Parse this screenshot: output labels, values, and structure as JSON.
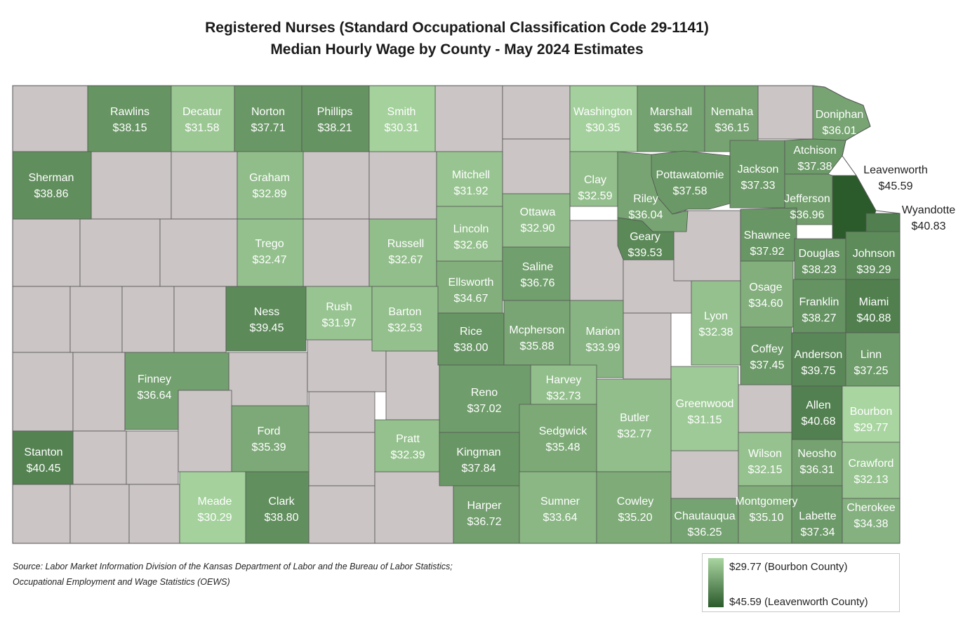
{
  "title_line1": "Registered Nurses (Standard Occupational Classification Code 29-1141)",
  "title_line2": "Median Hourly Wage by County - May 2024 Estimates",
  "source_line1": "Source: Labor Market Information Division of the Kansas Department of Labor and the Bureau of Labor Statistics;",
  "source_line2": "Occupational Employment and Wage Statistics (OEWS)",
  "legend": {
    "min_label": "$29.77 (Bourbon County)",
    "max_label": "$45.59 (Leavenworth County)",
    "min_value": 29.77,
    "max_value": 45.59,
    "min_color": "#a9d5a1",
    "max_color": "#2b5a2b"
  },
  "no_data_color": "#cbc5c5",
  "counties": [
    {
      "name": "Rawlins",
      "wage": "$38.15",
      "value": 38.15
    },
    {
      "name": "Decatur",
      "wage": "$31.58",
      "value": 31.58
    },
    {
      "name": "Norton",
      "wage": "$37.71",
      "value": 37.71
    },
    {
      "name": "Phillips",
      "wage": "$38.21",
      "value": 38.21
    },
    {
      "name": "Smith",
      "wage": "$30.31",
      "value": 30.31
    },
    {
      "name": "Washington",
      "wage": "$30.35",
      "value": 30.35
    },
    {
      "name": "Marshall",
      "wage": "$36.52",
      "value": 36.52
    },
    {
      "name": "Nemaha",
      "wage": "$36.15",
      "value": 36.15
    },
    {
      "name": "Doniphan",
      "wage": "$36.01",
      "value": 36.01
    },
    {
      "name": "Sherman",
      "wage": "$38.86",
      "value": 38.86
    },
    {
      "name": "Graham",
      "wage": "$32.89",
      "value": 32.89
    },
    {
      "name": "Mitchell",
      "wage": "$31.92",
      "value": 31.92
    },
    {
      "name": "Clay",
      "wage": "$32.59",
      "value": 32.59
    },
    {
      "name": "Pottawatomie",
      "wage": "$37.58",
      "value": 37.58
    },
    {
      "name": "Jackson",
      "wage": "$37.33",
      "value": 37.33
    },
    {
      "name": "Atchison",
      "wage": "$37.38",
      "value": 37.38
    },
    {
      "name": "Leavenworth",
      "wage": "$45.59",
      "value": 45.59
    },
    {
      "name": "Riley",
      "wage": "$36.04",
      "value": 36.04
    },
    {
      "name": "Jefferson",
      "wage": "$36.96",
      "value": 36.96
    },
    {
      "name": "Wyandotte",
      "wage": "$40.83",
      "value": 40.83
    },
    {
      "name": "Ottawa",
      "wage": "$32.90",
      "value": 32.9
    },
    {
      "name": "Trego",
      "wage": "$32.47",
      "value": 32.47
    },
    {
      "name": "Russell",
      "wage": "$32.67",
      "value": 32.67
    },
    {
      "name": "Lincoln",
      "wage": "$32.66",
      "value": 32.66
    },
    {
      "name": "Geary",
      "wage": "$39.53",
      "value": 39.53
    },
    {
      "name": "Shawnee",
      "wage": "$37.92",
      "value": 37.92
    },
    {
      "name": "Douglas",
      "wage": "$38.23",
      "value": 38.23
    },
    {
      "name": "Johnson",
      "wage": "$39.29",
      "value": 39.29
    },
    {
      "name": "Saline",
      "wage": "$36.76",
      "value": 36.76
    },
    {
      "name": "Ellsworth",
      "wage": "$34.67",
      "value": 34.67
    },
    {
      "name": "Ness",
      "wage": "$39.45",
      "value": 39.45
    },
    {
      "name": "Rush",
      "wage": "$31.97",
      "value": 31.97
    },
    {
      "name": "Barton",
      "wage": "$32.53",
      "value": 32.53
    },
    {
      "name": "Osage",
      "wage": "$34.60",
      "value": 34.6
    },
    {
      "name": "Franklin",
      "wage": "$38.27",
      "value": 38.27
    },
    {
      "name": "Miami",
      "wage": "$40.88",
      "value": 40.88
    },
    {
      "name": "Lyon",
      "wage": "$32.38",
      "value": 32.38
    },
    {
      "name": "Rice",
      "wage": "$38.00",
      "value": 38.0
    },
    {
      "name": "Mcpherson",
      "wage": "$35.88",
      "value": 35.88
    },
    {
      "name": "Marion",
      "wage": "$33.99",
      "value": 33.99
    },
    {
      "name": "Coffey",
      "wage": "$37.45",
      "value": 37.45
    },
    {
      "name": "Anderson",
      "wage": "$39.75",
      "value": 39.75
    },
    {
      "name": "Linn",
      "wage": "$37.25",
      "value": 37.25
    },
    {
      "name": "Finney",
      "wage": "$36.64",
      "value": 36.64
    },
    {
      "name": "Harvey",
      "wage": "$32.73",
      "value": 32.73
    },
    {
      "name": "Reno",
      "wage": "$37.02",
      "value": 37.02
    },
    {
      "name": "Greenwood",
      "wage": "$31.15",
      "value": 31.15
    },
    {
      "name": "Allen",
      "wage": "$40.68",
      "value": 40.68
    },
    {
      "name": "Bourbon",
      "wage": "$29.77",
      "value": 29.77
    },
    {
      "name": "Butler",
      "wage": "$32.77",
      "value": 32.77
    },
    {
      "name": "Ford",
      "wage": "$35.39",
      "value": 35.39
    },
    {
      "name": "Pratt",
      "wage": "$32.39",
      "value": 32.39
    },
    {
      "name": "Sedgwick",
      "wage": "$35.48",
      "value": 35.48
    },
    {
      "name": "Stanton",
      "wage": "$40.45",
      "value": 40.45
    },
    {
      "name": "Kingman",
      "wage": "$37.84",
      "value": 37.84
    },
    {
      "name": "Wilson",
      "wage": "$32.15",
      "value": 32.15
    },
    {
      "name": "Neosho",
      "wage": "$36.31",
      "value": 36.31
    },
    {
      "name": "Crawford",
      "wage": "$32.13",
      "value": 32.13
    },
    {
      "name": "Meade",
      "wage": "$30.29",
      "value": 30.29
    },
    {
      "name": "Clark",
      "wage": "$38.80",
      "value": 38.8
    },
    {
      "name": "Harper",
      "wage": "$36.72",
      "value": 36.72
    },
    {
      "name": "Sumner",
      "wage": "$33.64",
      "value": 33.64
    },
    {
      "name": "Cowley",
      "wage": "$35.20",
      "value": 35.2
    },
    {
      "name": "Chautauqua",
      "wage": "$36.25",
      "value": 36.25
    },
    {
      "name": "Montgomery",
      "wage": "$35.10",
      "value": 35.1
    },
    {
      "name": "Labette",
      "wage": "$37.34",
      "value": 37.34
    },
    {
      "name": "Cherokee",
      "wage": "$34.38",
      "value": 34.38
    }
  ]
}
